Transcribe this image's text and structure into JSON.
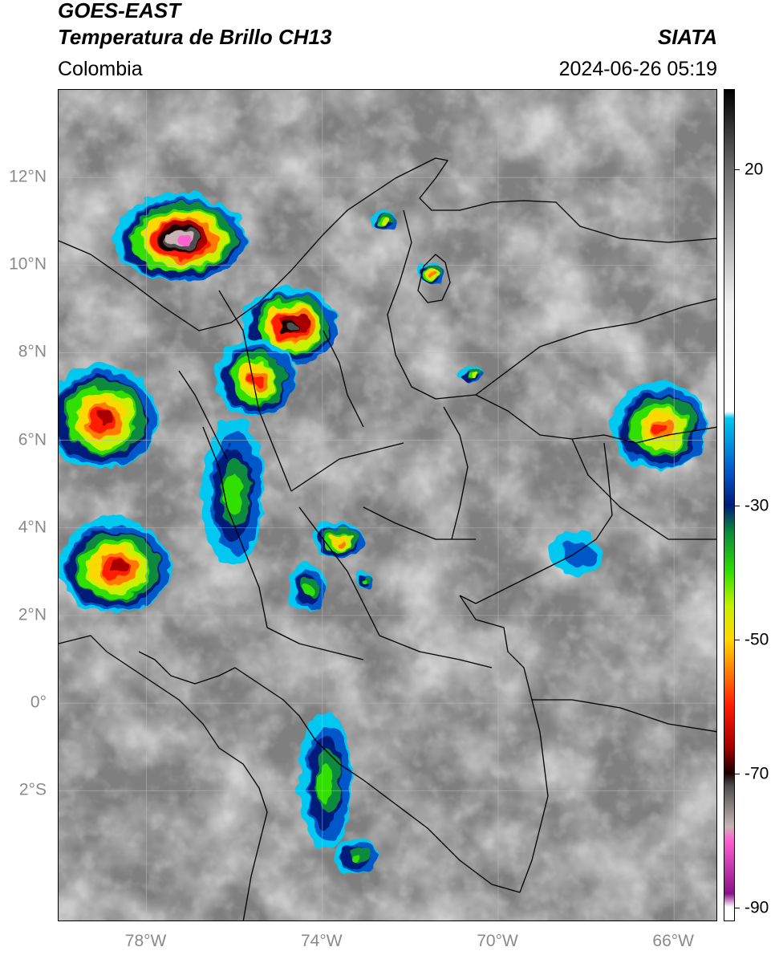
{
  "header": {
    "satellite": "GOES-EAST",
    "product": "Temperatura de Brillo CH13",
    "region": "Colombia",
    "institution": "SIATA",
    "datetime": "2024-06-26 05:19"
  },
  "axes": {
    "lat_ticks": [
      {
        "value": 12,
        "label": "12°N"
      },
      {
        "value": 10,
        "label": "10°N"
      },
      {
        "value": 8,
        "label": "8°N"
      },
      {
        "value": 6,
        "label": "6°N"
      },
      {
        "value": 4,
        "label": "4°N"
      },
      {
        "value": 2,
        "label": "2°N"
      },
      {
        "value": 0,
        "label": "0°"
      },
      {
        "value": -2,
        "label": "2°S"
      }
    ],
    "lon_ticks": [
      {
        "value": -78,
        "label": "78°W"
      },
      {
        "value": -74,
        "label": "74°W"
      },
      {
        "value": -70,
        "label": "70°W"
      },
      {
        "value": -66,
        "label": "66°W"
      }
    ],
    "lon_range": [
      -80.0,
      -65.0
    ],
    "lat_range": [
      -5.0,
      14.0
    ],
    "grid": true
  },
  "colorbar": {
    "units_range": [
      -92,
      32
    ],
    "ticks": [
      {
        "value": 20,
        "label": "20"
      },
      {
        "value": -30,
        "label": "-30"
      },
      {
        "value": -50,
        "label": "-50"
      },
      {
        "value": -70,
        "label": "-70"
      },
      {
        "value": -90,
        "label": "-90"
      }
    ],
    "stops": [
      {
        "t": 32,
        "color": "#000000"
      },
      {
        "t": 20,
        "color": "#6e6e6e"
      },
      {
        "t": 0,
        "color": "#f0f0f0"
      },
      {
        "t": -16,
        "color": "#ffffff"
      },
      {
        "t": -17,
        "color": "#00c8f0"
      },
      {
        "t": -25,
        "color": "#0058c8"
      },
      {
        "t": -30,
        "color": "#001c7a"
      },
      {
        "t": -34,
        "color": "#0a8a3c"
      },
      {
        "t": -40,
        "color": "#30e000"
      },
      {
        "t": -45,
        "color": "#c8f000"
      },
      {
        "t": -50,
        "color": "#ffd800"
      },
      {
        "t": -55,
        "color": "#ff7a00"
      },
      {
        "t": -60,
        "color": "#ff1a00"
      },
      {
        "t": -66,
        "color": "#a80000"
      },
      {
        "t": -70,
        "color": "#1a0000"
      },
      {
        "t": -72,
        "color": "#505050"
      },
      {
        "t": -78,
        "color": "#c8b4b4"
      },
      {
        "t": -80,
        "color": "#ff60d0"
      },
      {
        "t": -88,
        "color": "#8a108a"
      },
      {
        "t": -90,
        "color": "#ffffff"
      }
    ]
  },
  "map": {
    "background_color": "#7f7f7f",
    "cloud_systems": [
      {
        "name": "caribbean-storm-north",
        "lon": -77.2,
        "lat": 10.6,
        "rx_deg": 1.5,
        "ry_deg": 1.0,
        "tmin": -80
      },
      {
        "name": "magdalena-storm",
        "lon": -74.7,
        "lat": 8.6,
        "rx_deg": 1.1,
        "ry_deg": 0.9,
        "tmin": -72
      },
      {
        "name": "cordoba-storm",
        "lon": -75.5,
        "lat": 7.4,
        "rx_deg": 0.9,
        "ry_deg": 0.9,
        "tmin": -62
      },
      {
        "name": "pacific-storm-north",
        "lon": -79.0,
        "lat": 6.5,
        "rx_deg": 1.3,
        "ry_deg": 1.2,
        "tmin": -68
      },
      {
        "name": "pacific-storm-south",
        "lon": -78.7,
        "lat": 3.1,
        "rx_deg": 1.3,
        "ry_deg": 1.1,
        "tmin": -66
      },
      {
        "name": "cordillera-band",
        "lon": -76.0,
        "lat": 4.8,
        "rx_deg": 0.7,
        "ry_deg": 1.7,
        "tmin": -42
      },
      {
        "name": "meta-cell",
        "lon": -73.6,
        "lat": 3.7,
        "rx_deg": 0.6,
        "ry_deg": 0.4,
        "tmin": -58
      },
      {
        "name": "huila-cell",
        "lon": -74.3,
        "lat": 2.6,
        "rx_deg": 0.45,
        "ry_deg": 0.55,
        "tmin": -44
      },
      {
        "name": "putumayo-band",
        "lon": -73.9,
        "lat": -1.8,
        "rx_deg": 0.6,
        "ry_deg": 1.6,
        "tmin": -42
      },
      {
        "name": "amazon-cell",
        "lon": -73.2,
        "lat": -3.5,
        "rx_deg": 0.45,
        "ry_deg": 0.45,
        "tmin": -44
      },
      {
        "name": "venezuela-east-storm",
        "lon": -66.3,
        "lat": 6.3,
        "rx_deg": 1.1,
        "ry_deg": 1.0,
        "tmin": -60
      },
      {
        "name": "lake-maracaibo-cell",
        "lon": -71.5,
        "lat": 9.8,
        "rx_deg": 0.3,
        "ry_deg": 0.25,
        "tmin": -58
      },
      {
        "name": "guajira-cell",
        "lon": -72.6,
        "lat": 11.0,
        "rx_deg": 0.3,
        "ry_deg": 0.2,
        "tmin": -45
      },
      {
        "name": "apure-cell",
        "lon": -70.6,
        "lat": 7.5,
        "rx_deg": 0.3,
        "ry_deg": 0.15,
        "tmin": -48
      },
      {
        "name": "vichada-cells",
        "lon": -68.2,
        "lat": 3.4,
        "rx_deg": 0.6,
        "ry_deg": 0.5,
        "tmin": -28
      },
      {
        "name": "guaviare-cell",
        "lon": -73.0,
        "lat": 2.8,
        "rx_deg": 0.2,
        "ry_deg": 0.2,
        "tmin": -40
      }
    ]
  }
}
